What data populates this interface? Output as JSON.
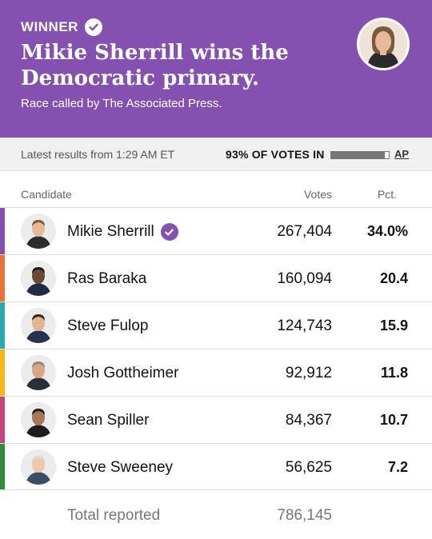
{
  "banner": {
    "winner_label": "WINNER",
    "headline": "Mikie Sherrill wins the Democratic primary.",
    "subline": "Race called by The Associated Press.",
    "background_color": "#8451b0"
  },
  "status": {
    "latest": "Latest results from 1:29 AM ET",
    "votes_in": "93% OF VOTES IN",
    "progress_fraction": 0.93,
    "source": "AP"
  },
  "table": {
    "headers": {
      "candidate": "Candidate",
      "votes": "Votes",
      "pct": "Pct."
    },
    "rows": [
      {
        "name": "Mikie Sherrill",
        "votes": "267,404",
        "pct": "34.0%",
        "winner": true,
        "color": "#8451b0",
        "icon": "candidate-photo"
      },
      {
        "name": "Ras Baraka",
        "votes": "160,094",
        "pct": "20.4",
        "winner": false,
        "color": "#e8743b",
        "icon": "candidate-photo"
      },
      {
        "name": "Steve Fulop",
        "votes": "124,743",
        "pct": "15.9",
        "winner": false,
        "color": "#2fa7b0",
        "icon": "candidate-photo"
      },
      {
        "name": "Josh Gottheimer",
        "votes": "92,912",
        "pct": "11.8",
        "winner": false,
        "color": "#f3b91a",
        "icon": "candidate-photo"
      },
      {
        "name": "Sean Spiller",
        "votes": "84,367",
        "pct": "10.7",
        "winner": false,
        "color": "#c2457a",
        "icon": "candidate-photo"
      },
      {
        "name": "Steve Sweeney",
        "votes": "56,625",
        "pct": "7.2",
        "winner": false,
        "color": "#2f8c3a",
        "icon": "candidate-photo"
      }
    ],
    "total_label": "Total reported",
    "total_votes": "786,145"
  }
}
